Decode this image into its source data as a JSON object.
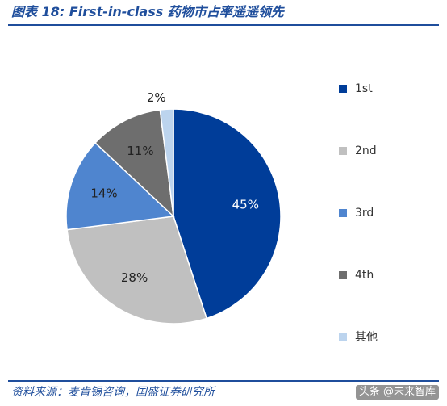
{
  "header": {
    "title": "图表 18:  First-in-class 药物市占率遥遥领先"
  },
  "footer": {
    "source": "资料来源：麦肯锡咨询，国盛证券研究所",
    "watermark": "头条 @未来智库"
  },
  "chart_data": {
    "type": "pie",
    "slices": [
      {
        "label": "1st",
        "value": 45,
        "data_label": "45%",
        "color": "#003d99",
        "text_color": "#ffffff"
      },
      {
        "label": "2nd",
        "value": 28,
        "data_label": "28%",
        "color": "#c0c0c0",
        "text_color": "#222222"
      },
      {
        "label": "3rd",
        "value": 14,
        "data_label": "14%",
        "color": "#4f85cf",
        "text_color": "#222222"
      },
      {
        "label": "4th",
        "value": 11,
        "data_label": "11%",
        "color": "#6e6e6e",
        "text_color": "#222222"
      },
      {
        "label": "其他",
        "value": 2,
        "data_label": "2%",
        "color": "#bcd4ee",
        "text_color": "#222222"
      }
    ],
    "start_angle": "12 o'clock",
    "direction": "clockwise",
    "legend_position": "right"
  }
}
